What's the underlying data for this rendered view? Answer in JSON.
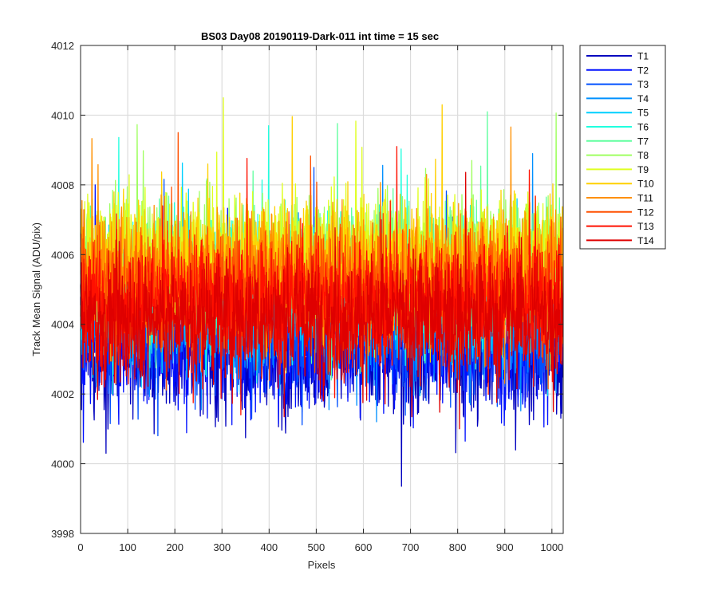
{
  "chart_data": {
    "type": "line",
    "title": "BS03 Day08 20190119-Dark-011 int time = 15 sec",
    "xlabel": "Pixels",
    "ylabel": "Track Mean Signal (ADU/pix)",
    "xlim": [
      0,
      1024
    ],
    "ylim": [
      3998,
      4012
    ],
    "xticks": [
      0,
      100,
      200,
      300,
      400,
      500,
      600,
      700,
      800,
      900,
      1000
    ],
    "yticks": [
      3998,
      4000,
      4002,
      4004,
      4006,
      4008,
      4010,
      4012
    ],
    "grid": true,
    "legend_position": "outside top-right",
    "n_points_per_series": 1024,
    "series": [
      {
        "name": "T1",
        "color": "#0000bf",
        "mean": 4003.1,
        "spread": 0.9
      },
      {
        "name": "T2",
        "color": "#0010ff",
        "mean": 4003.5,
        "spread": 0.9
      },
      {
        "name": "T3",
        "color": "#0050ff",
        "mean": 4004.0,
        "spread": 0.9
      },
      {
        "name": "T4",
        "color": "#0090ff",
        "mean": 4004.4,
        "spread": 0.9
      },
      {
        "name": "T5",
        "color": "#00d0ff",
        "mean": 4004.8,
        "spread": 0.9
      },
      {
        "name": "T6",
        "color": "#20ffdf",
        "mean": 4005.2,
        "spread": 0.9
      },
      {
        "name": "T7",
        "color": "#60ff9f",
        "mean": 4005.6,
        "spread": 0.9
      },
      {
        "name": "T8",
        "color": "#9fff60",
        "mean": 4005.9,
        "spread": 0.9
      },
      {
        "name": "T9",
        "color": "#dfff20",
        "mean": 4006.0,
        "spread": 0.9
      },
      {
        "name": "T10",
        "color": "#ffd000",
        "mean": 4005.8,
        "spread": 0.9
      },
      {
        "name": "T11",
        "color": "#ff9000",
        "mean": 4005.5,
        "spread": 0.9
      },
      {
        "name": "T12",
        "color": "#ff5000",
        "mean": 4005.0,
        "spread": 0.9
      },
      {
        "name": "T13",
        "color": "#ff1000",
        "mean": 4004.6,
        "spread": 0.9
      },
      {
        "name": "T14",
        "color": "#df0000",
        "mean": 4004.2,
        "spread": 0.9
      }
    ]
  }
}
